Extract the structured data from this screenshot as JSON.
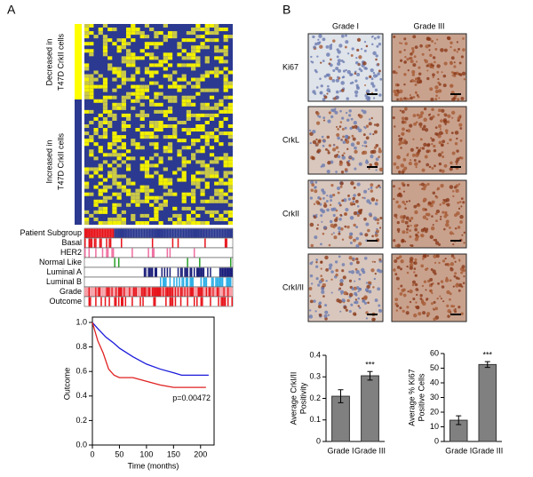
{
  "panel_labels": [
    "A",
    "B"
  ],
  "heatmap": {
    "row_groups": [
      [
        "Decreased in",
        "T47D CrkII cells"
      ],
      [
        "Increased in",
        "T47D CrkII cells"
      ]
    ],
    "tracks": [
      "Patient Subgroup",
      "Basal",
      "HER2",
      "Normal Like",
      "Luminal A",
      "Luminal B",
      "Grade",
      "Outcome"
    ]
  },
  "ihc": {
    "columns": [
      "Grade I",
      "Grade III"
    ],
    "rows": [
      "Ki67",
      "CrkL",
      "CrkII",
      "CrkI/II"
    ]
  },
  "chart_data": [
    {
      "type": "line",
      "xlabel": "Time (months)",
      "ylabel": "Outcome",
      "annotation": "p=0.00472",
      "xlim": [
        0,
        225
      ],
      "xticks": [
        0,
        50,
        100,
        150,
        200
      ],
      "ylim": [
        0,
        1.0
      ],
      "yticks": [
        {
          "value": 0,
          "label": "0.0"
        },
        0.2,
        0.4,
        0.6,
        0.8,
        {
          "value": 1.0,
          "label": "1.0"
        }
      ],
      "series": [
        {
          "color": "#1a1adb",
          "x": [
            0,
            10,
            25,
            40,
            50,
            75,
            100,
            125,
            150,
            165,
            215
          ],
          "values": [
            1.0,
            0.95,
            0.88,
            0.83,
            0.79,
            0.72,
            0.66,
            0.62,
            0.59,
            0.57,
            0.57
          ]
        },
        {
          "color": "#e02020",
          "x": [
            0,
            10,
            20,
            30,
            40,
            50,
            75,
            100,
            125,
            150,
            210
          ],
          "values": [
            1.0,
            0.85,
            0.75,
            0.62,
            0.57,
            0.55,
            0.55,
            0.52,
            0.49,
            0.47,
            0.47
          ]
        }
      ]
    },
    {
      "type": "bar",
      "ylabel": [
        "Average CrkI/II",
        "Positivity"
      ],
      "categories": [
        "Grade I",
        "Grade III"
      ],
      "values": [
        0.21,
        0.305
      ],
      "errors": [
        0.03,
        0.02
      ],
      "color": "#808080",
      "annotation": "***",
      "ylim": [
        0,
        0.4
      ],
      "yticks": [
        0,
        0.1,
        0.2,
        0.3,
        0.4
      ]
    },
    {
      "type": "bar",
      "ylabel": [
        "Average % Ki67",
        "Positive Cells"
      ],
      "categories": [
        "Grade I",
        "Grade III"
      ],
      "values": [
        14.5,
        52.5
      ],
      "errors": [
        3,
        2
      ],
      "color": "#808080",
      "annotation": "***",
      "ylim": [
        0,
        60
      ],
      "yticks": [
        0,
        10,
        20,
        30,
        40,
        50,
        60
      ]
    }
  ]
}
